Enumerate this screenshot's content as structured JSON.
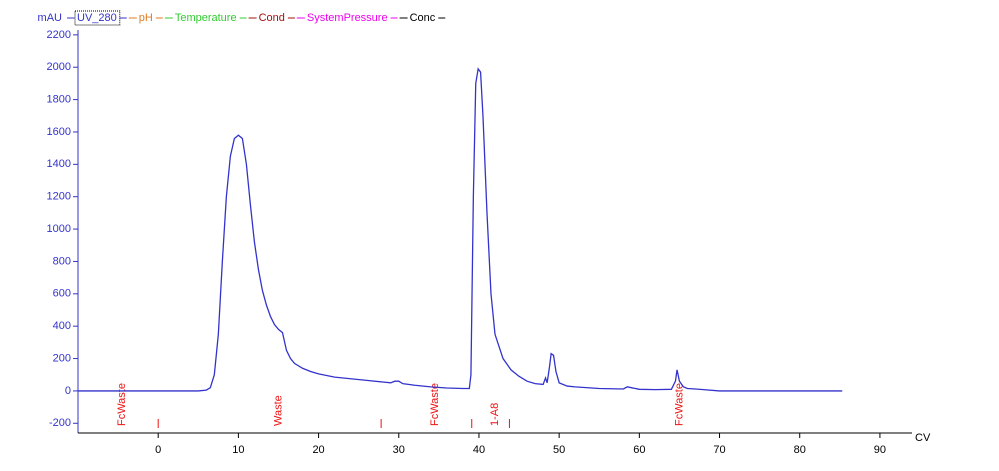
{
  "chart_data": {
    "type": "line",
    "y_unit": "mAU",
    "x_unit": "CV",
    "xlim": [
      -10,
      94
    ],
    "ylim": [
      -260,
      2230
    ],
    "xticks": [
      0,
      10,
      20,
      30,
      40,
      50,
      60,
      70,
      80,
      90
    ],
    "yticks": [
      -200,
      0,
      200,
      400,
      600,
      800,
      1000,
      1200,
      1400,
      1600,
      1800,
      2000,
      2200
    ],
    "x": [
      -10,
      5,
      6,
      6.5,
      7,
      7.5,
      8,
      8.5,
      9,
      9.5,
      10,
      10.5,
      11,
      11.5,
      12,
      12.5,
      13,
      13.5,
      14,
      14.5,
      15,
      15.5,
      16,
      16.5,
      17,
      18,
      19,
      20,
      22,
      24,
      26,
      28,
      29,
      29.5,
      30,
      30.5,
      32,
      34,
      36,
      38,
      38.8,
      39,
      39.3,
      39.6,
      39.9,
      40.2,
      40.5,
      41,
      41.5,
      42,
      43,
      44,
      45,
      46,
      47,
      48,
      48.3,
      48.5,
      48.8,
      49,
      49.3,
      49.6,
      50,
      51,
      52,
      55,
      58,
      58.5,
      59,
      60,
      62,
      64,
      64.5,
      64.7,
      65,
      65.5,
      66,
      67,
      68,
      70,
      85.3
    ],
    "series": [
      {
        "name": "UV_280",
        "color": "#3333cc",
        "values": [
          0,
          0,
          5,
          20,
          100,
          350,
          800,
          1200,
          1450,
          1560,
          1580,
          1560,
          1400,
          1150,
          920,
          750,
          620,
          530,
          460,
          410,
          380,
          360,
          250,
          200,
          170,
          140,
          120,
          105,
          85,
          75,
          65,
          55,
          50,
          60,
          60,
          45,
          35,
          25,
          18,
          15,
          15,
          100,
          1200,
          1900,
          1990,
          1970,
          1700,
          1100,
          600,
          350,
          200,
          130,
          90,
          60,
          45,
          40,
          80,
          50,
          150,
          230,
          220,
          120,
          50,
          30,
          25,
          15,
          12,
          25,
          20,
          10,
          8,
          10,
          60,
          130,
          60,
          25,
          15,
          12,
          8,
          0,
          0
        ]
      }
    ],
    "other_legend": [
      {
        "name": "pH",
        "color": "#e07b20"
      },
      {
        "name": "Temperature",
        "color": "#33cc33"
      },
      {
        "name": "Cond",
        "color": "#a01010"
      },
      {
        "name": "SystemPressure",
        "color": "#ee00ee"
      },
      {
        "name": "Conc",
        "color": "#000000"
      }
    ],
    "fraction_color": "#ee1111",
    "fractions": [
      {
        "x": -4.5,
        "label": "FcWaste"
      },
      {
        "x": 15,
        "label": "Waste"
      },
      {
        "x": 34.5,
        "label": "FcWaste"
      },
      {
        "x": 42,
        "label": "1-A8"
      },
      {
        "x": 65,
        "label": "FcWaste"
      }
    ],
    "fraction_ticks": [
      0,
      27.8,
      39.1,
      43.8
    ]
  }
}
